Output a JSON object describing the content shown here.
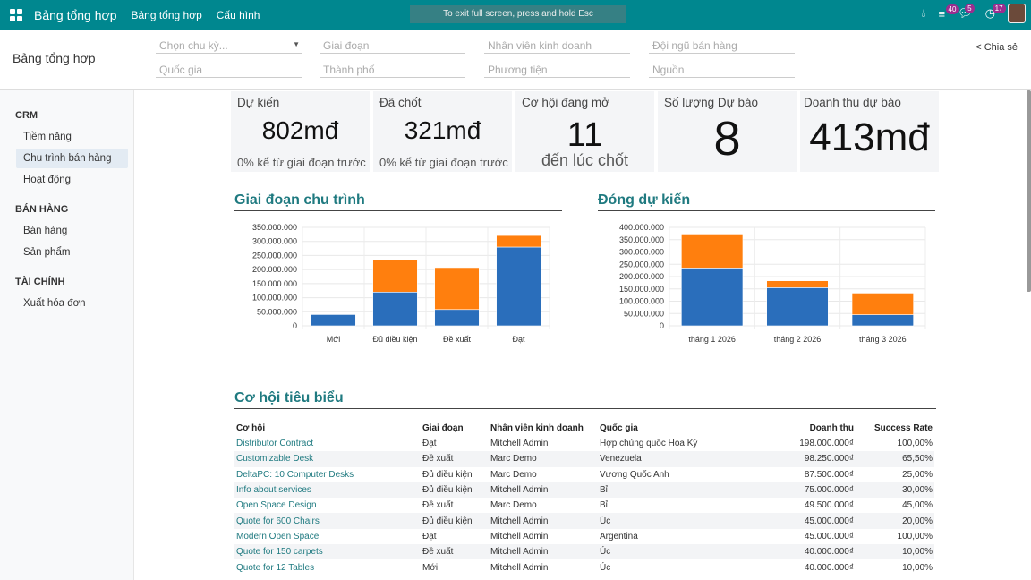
{
  "topbar": {
    "app_title": "Bảng tổng hợp",
    "menu": [
      "Bảng tổng hợp",
      "Cấu hình"
    ],
    "badges": {
      "activities": "40",
      "messages": "5",
      "clock": "17"
    }
  },
  "control_panel": {
    "title": "Bảng tổng hợp",
    "toast": "To exit full screen, press and hold Esc",
    "share": "Chia sẻ",
    "filters": {
      "period": "Chọn chu kỳ...",
      "stage": "Giai đoạn",
      "salesperson": "Nhân viên kinh doanh",
      "team": "Đội ngũ bán hàng",
      "country": "Quốc gia",
      "city": "Thành phố",
      "medium": "Phương tiện",
      "source": "Nguồn"
    }
  },
  "sidebar": {
    "sections": [
      {
        "title": "CRM",
        "items": [
          "Tiềm năng",
          "Chu trình bán hàng",
          "Hoạt động"
        ]
      },
      {
        "title": "BÁN HÀNG",
        "items": [
          "Bán hàng",
          "Sản phẩm"
        ]
      },
      {
        "title": "TÀI CHÍNH",
        "items": [
          "Xuất hóa đơn"
        ]
      }
    ],
    "active": "Chu trình bán hàng"
  },
  "kpis": [
    {
      "label": "Dự kiến",
      "value": "802mđ",
      "sub": "0% kể từ giai đoạn trước"
    },
    {
      "label": "Đã chốt",
      "value": "321mđ",
      "sub": "0% kể từ giai đoạn trước"
    },
    {
      "label": "Cơ hội đang mở",
      "value": "11",
      "sub": "đến lúc chốt"
    },
    {
      "label": "Số lượng Dự báo",
      "value": "8"
    },
    {
      "label": "Doanh thu dự báo",
      "value": "413mđ"
    }
  ],
  "colors": {
    "brand": "#00878f",
    "series_blue": "#2a6ebb",
    "series_orange": "#ff7f0e"
  },
  "chart_data": [
    {
      "type": "bar",
      "stacked": true,
      "title": "Giai đoạn chu trình",
      "categories": [
        "Mới",
        "Đủ điều kiện",
        "Đề xuất",
        "Đạt"
      ],
      "ylim": [
        0,
        350000000
      ],
      "yticks": [
        "0",
        "50.000.000",
        "100.000.000",
        "150.000.000",
        "200.000.000",
        "250.000.000",
        "300.000.000",
        "350.000.000"
      ],
      "grid": true,
      "series": [
        {
          "color": "#2a6ebb",
          "values": [
            40000000,
            120000000,
            58000000,
            280000000
          ]
        },
        {
          "color": "#ff7f0e",
          "values": [
            0,
            115000000,
            149000000,
            41000000
          ]
        }
      ]
    },
    {
      "type": "bar",
      "stacked": true,
      "title": "Đóng dự kiến",
      "categories": [
        "tháng 1 2026",
        "tháng 2 2026",
        "tháng 3 2026"
      ],
      "ylim": [
        0,
        400000000
      ],
      "yticks": [
        "0",
        "50.000.000",
        "100.000.000",
        "150.000.000",
        "200.000.000",
        "250.000.000",
        "300.000.000",
        "350.000.000",
        "400.000.000"
      ],
      "grid": true,
      "series": [
        {
          "color": "#2a6ebb",
          "values": [
            235000000,
            155000000,
            45000000
          ]
        },
        {
          "color": "#ff7f0e",
          "values": [
            138000000,
            28000000,
            88000000
          ]
        }
      ]
    }
  ],
  "table": {
    "title": "Cơ hội tiêu biểu",
    "columns": [
      "Cơ hội",
      "Giai đoạn",
      "Nhân viên kinh doanh",
      "Quốc gia",
      "Doanh thu",
      "Success Rate"
    ],
    "rows": [
      [
        "Distributor Contract",
        "Đạt",
        "Mitchell Admin",
        "Hợp chủng quốc Hoa Kỳ",
        "198.000.000₫",
        "100,00%"
      ],
      [
        "Customizable Desk",
        "Đề xuất",
        "Marc Demo",
        "Venezuela",
        "98.250.000₫",
        "65,50%"
      ],
      [
        "DeltaPC: 10 Computer Desks",
        "Đủ điều kiện",
        "Marc Demo",
        "Vương Quốc Anh",
        "87.500.000₫",
        "25,00%"
      ],
      [
        "Info about services",
        "Đủ điều kiện",
        "Mitchell Admin",
        "Bỉ",
        "75.000.000₫",
        "30,00%"
      ],
      [
        "Open Space Design",
        "Đề xuất",
        "Marc Demo",
        "Bỉ",
        "49.500.000₫",
        "45,00%"
      ],
      [
        "Quote for 600 Chairs",
        "Đủ điều kiện",
        "Mitchell Admin",
        "Úc",
        "45.000.000₫",
        "20,00%"
      ],
      [
        "Modern Open Space",
        "Đạt",
        "Mitchell Admin",
        "Argentina",
        "45.000.000₫",
        "100,00%"
      ],
      [
        "Quote for 150 carpets",
        "Đề xuất",
        "Mitchell Admin",
        "Úc",
        "40.000.000₫",
        "10,00%"
      ],
      [
        "Quote for 12 Tables",
        "Mới",
        "Mitchell Admin",
        "Úc",
        "40.000.000₫",
        "10,00%"
      ]
    ]
  }
}
